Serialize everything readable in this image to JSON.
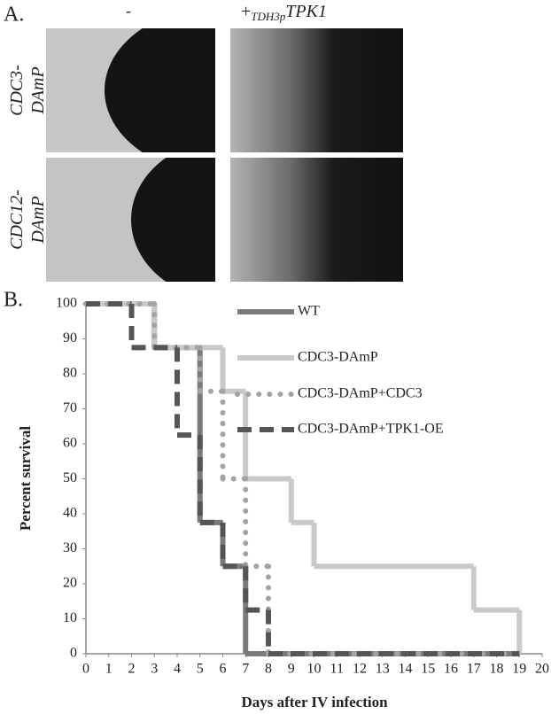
{
  "panel_a": {
    "label": "A.",
    "col_left": "-",
    "col_right": {
      "prefix": "+",
      "subscript": "TDH3p",
      "gene": "TPK1"
    },
    "row_top": [
      "CDC3-",
      "DAmP"
    ],
    "row_bottom": [
      "CDC12-",
      "DAmP"
    ]
  },
  "chart_data": {
    "type": "step",
    "panel_label": "B.",
    "xlabel": "Days after IV infection",
    "ylabel": "Percent survival",
    "xlim": [
      0,
      20
    ],
    "xticks": [
      0,
      1,
      2,
      3,
      4,
      5,
      6,
      7,
      8,
      9,
      10,
      11,
      12,
      13,
      14,
      15,
      16,
      17,
      18,
      19,
      20
    ],
    "ylim": [
      0,
      100
    ],
    "yticks": [
      0,
      10,
      20,
      30,
      40,
      50,
      60,
      70,
      80,
      90,
      100
    ],
    "grid": false,
    "series": [
      {
        "name": "WT",
        "color": "#7a7a7a",
        "dash": "solid",
        "x": [
          0,
          3,
          5,
          6,
          7,
          19
        ],
        "values": [
          100,
          87.5,
          37.5,
          25,
          0,
          0
        ]
      },
      {
        "name": "CDC3-DAmP",
        "color": "#c9c9c9",
        "dash": "solid",
        "x": [
          0,
          3,
          6,
          7,
          9,
          10,
          17,
          19
        ],
        "values": [
          100,
          87.5,
          75,
          50,
          37.5,
          25,
          12.5,
          0
        ]
      },
      {
        "name": "CDC3-DAmP+CDC3",
        "color": "#a3a3a3",
        "dash": "dotted",
        "x": [
          0,
          3,
          5,
          6,
          7,
          8,
          19
        ],
        "values": [
          100,
          87.5,
          75,
          50,
          25,
          0,
          0
        ]
      },
      {
        "name": "CDC3-DAmP+TPK1-OE",
        "color": "#555555",
        "dash": "dashed",
        "x": [
          0,
          2,
          4,
          5,
          6,
          7,
          8,
          19
        ],
        "values": [
          100,
          87.5,
          62.5,
          37.5,
          25,
          12.5,
          0,
          0
        ]
      }
    ]
  }
}
